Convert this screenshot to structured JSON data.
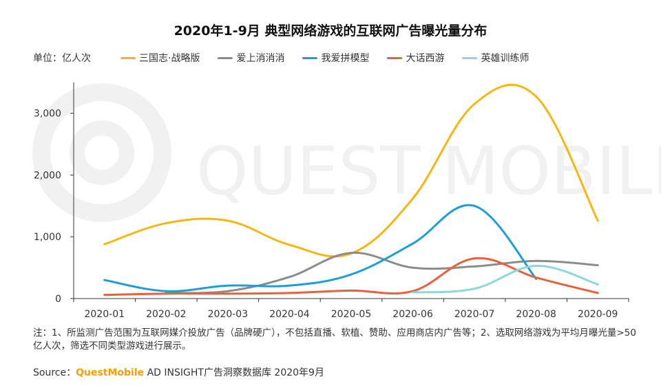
{
  "title": "2020年1-9月 典型网络游戏的互联网广告曝光量分布",
  "unit_label": "单位：亿人次",
  "watermark": "QUEST MOBILE",
  "note": "注：1、所监测广告范围为互联网媒介投放广告（品牌硬广），不包括直播、软植、赞助、应用商店内广告等；2、选取网络游戏为平均月曝光量>50亿人次，筛选不同类型游戏进行展示。",
  "source": {
    "prefix": "Source：",
    "brand": "QuestMobile",
    "suffix": " AD INSIGHT广告洞察数据库 2020年9月"
  },
  "chart_data": {
    "type": "line",
    "title": "2020年1-9月 典型网络游戏的互联网广告曝光量分布",
    "xlabel": "",
    "ylabel": "单位：亿人次",
    "categories": [
      "2020-01",
      "2020-02",
      "2020-03",
      "2020-04",
      "2020-05",
      "2020-06",
      "2020-07",
      "2020-08",
      "2020-09"
    ],
    "yticks": [
      0,
      1000,
      2000,
      3000
    ],
    "ytick_labels": [
      "0",
      "1,000",
      "2,000",
      "3,000"
    ],
    "ylim": [
      0,
      3500
    ],
    "grid": false,
    "legend_position": "top",
    "series": [
      {
        "name": "三国志·战略版",
        "color": "#f5b70f",
        "values": [
          880,
          1220,
          1260,
          870,
          730,
          1620,
          3150,
          3270,
          1260
        ]
      },
      {
        "name": "爱上消消消",
        "color": "#8c8c8c",
        "values": [
          null,
          90,
          120,
          350,
          740,
          500,
          520,
          610,
          540
        ]
      },
      {
        "name": "我爱拼模型",
        "color": "#1c9ed8",
        "values": [
          300,
          120,
          210,
          210,
          390,
          890,
          1500,
          320,
          null
        ]
      },
      {
        "name": "大话西游",
        "color": "#e8603c",
        "values": [
          60,
          80,
          80,
          90,
          130,
          120,
          650,
          340,
          90
        ]
      },
      {
        "name": "英雄训练师",
        "color": "#8fd6d9",
        "values": [
          null,
          null,
          null,
          null,
          null,
          100,
          160,
          530,
          230
        ]
      }
    ]
  }
}
